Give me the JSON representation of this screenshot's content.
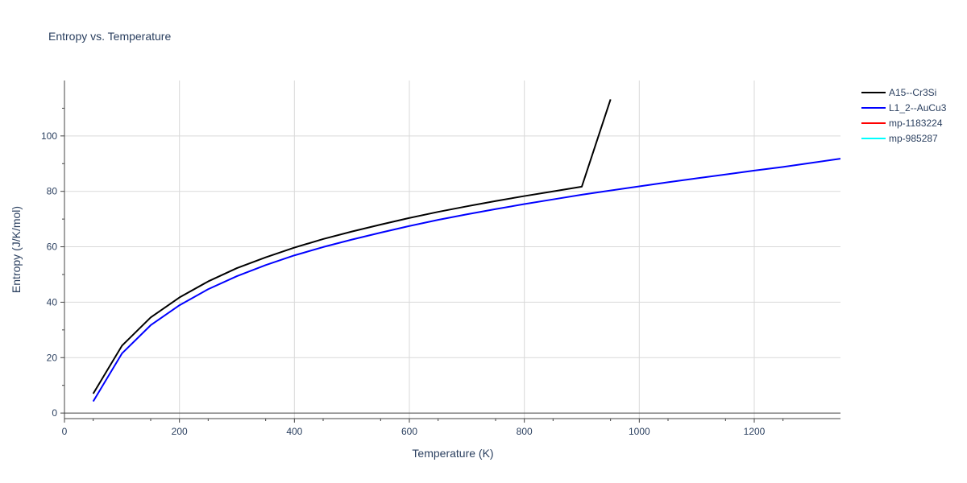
{
  "chart_data": {
    "type": "line",
    "title": "Entropy vs. Temperature",
    "xlabel": "Temperature (K)",
    "ylabel": "Entropy (J/K/mol)",
    "xlim": [
      0,
      1350
    ],
    "ylim": [
      -2,
      120
    ],
    "xticks": [
      0,
      200,
      400,
      600,
      800,
      1000,
      1200
    ],
    "yticks": [
      0,
      20,
      40,
      60,
      80,
      100
    ],
    "grid": true,
    "legend_position": "top-right",
    "series": [
      {
        "name": "A15--Cr3Si",
        "color": "#000000",
        "x": [
          50,
          100,
          150,
          200,
          250,
          300,
          350,
          400,
          450,
          500,
          550,
          600,
          650,
          700,
          750,
          800,
          850,
          900,
          950
        ],
        "y": [
          7.0,
          24.3,
          34.5,
          41.7,
          47.5,
          52.3,
          56.2,
          59.7,
          62.8,
          65.5,
          68.0,
          70.4,
          72.6,
          74.6,
          76.5,
          78.3,
          80.0,
          81.7,
          113.2
        ]
      },
      {
        "name": "L1_2--AuCu3",
        "color": "#0000ff",
        "x": [
          50,
          100,
          150,
          200,
          250,
          300,
          350,
          400,
          450,
          500,
          550,
          600,
          650,
          700,
          750,
          800,
          850,
          900,
          950,
          1000,
          1050,
          1100,
          1150,
          1200,
          1250,
          1300,
          1350
        ],
        "y": [
          4.2,
          21.5,
          31.7,
          38.9,
          44.7,
          49.4,
          53.4,
          56.9,
          59.9,
          62.6,
          65.1,
          67.5,
          69.7,
          71.7,
          73.6,
          75.4,
          77.1,
          78.8,
          80.3,
          81.8,
          83.3,
          84.7,
          86.1,
          87.5,
          88.8,
          90.3,
          91.8
        ]
      },
      {
        "name": "mp-1183224",
        "color": "#ff0000",
        "x": [],
        "y": []
      },
      {
        "name": "mp-985287",
        "color": "#00ffff",
        "x": [],
        "y": []
      }
    ]
  }
}
